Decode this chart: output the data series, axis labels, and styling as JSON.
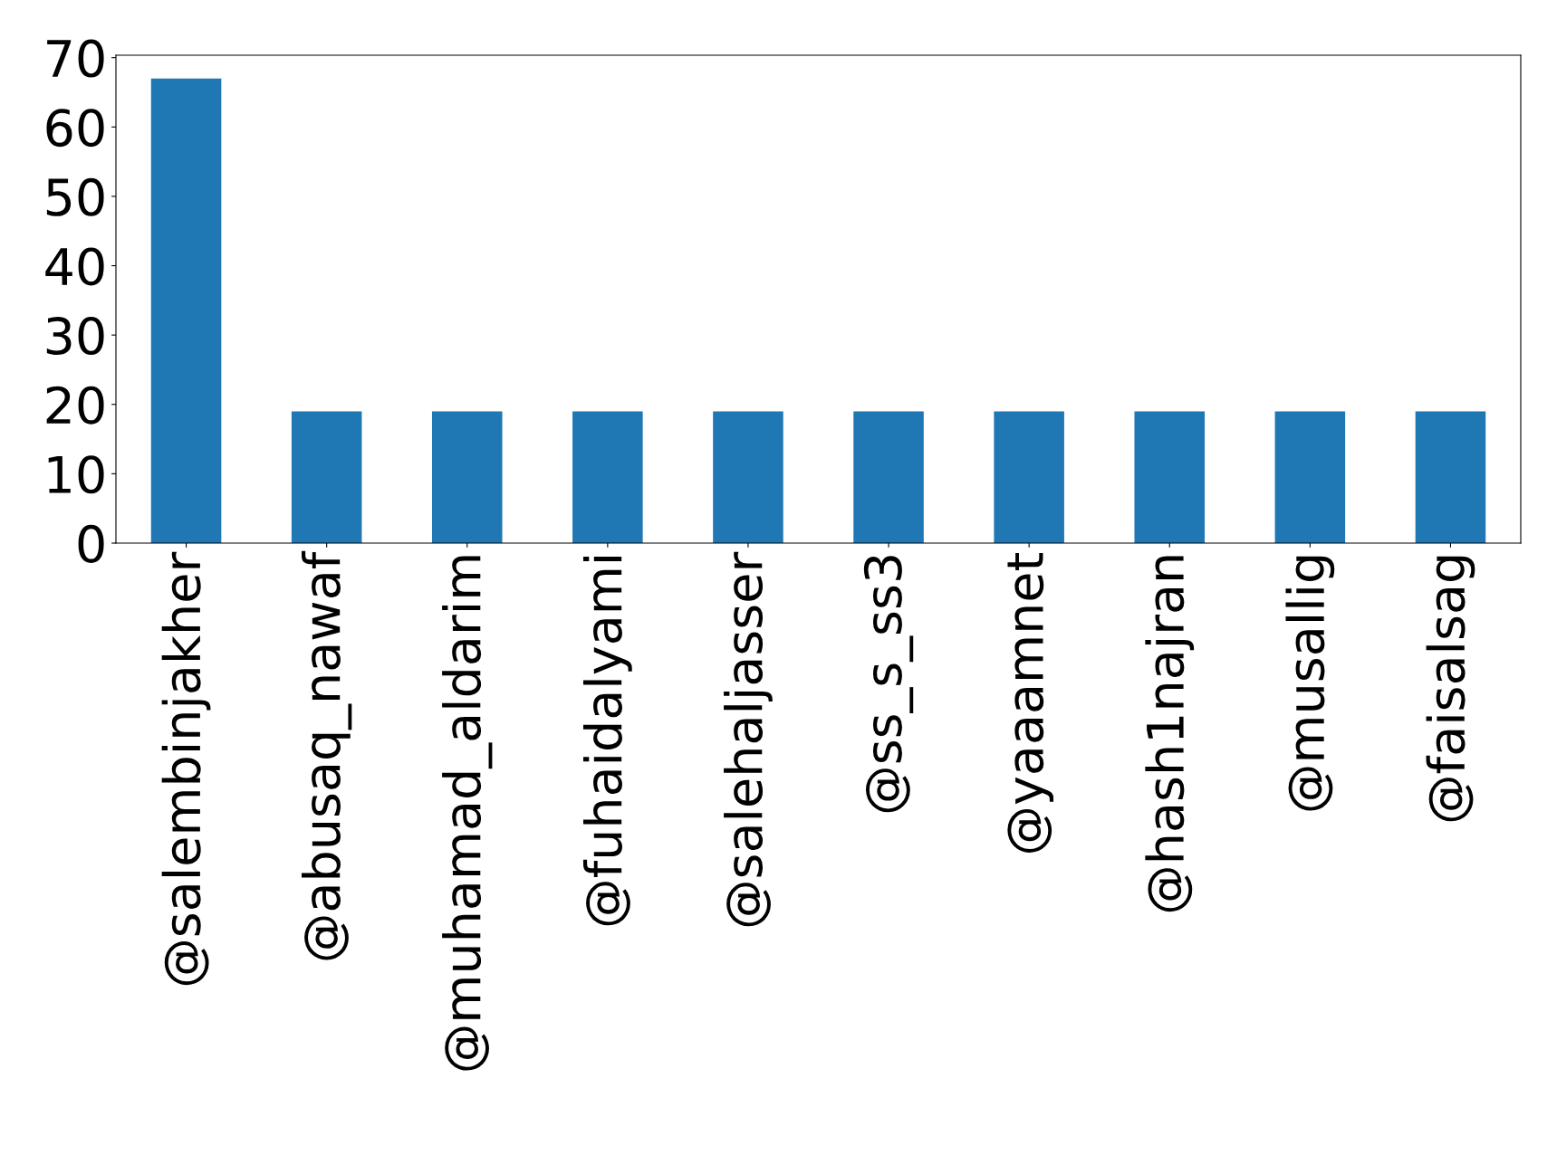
{
  "chart_data": {
    "type": "bar",
    "categories": [
      "@salembinjakher",
      "@abusaq_nawaf",
      "@muhamad_aldarim",
      "@fuhaidalyami",
      "@salehaljasser",
      "@ss_s_ss3",
      "@yaaamnet",
      "@hash1najran",
      "@musallig",
      "@faisalsag"
    ],
    "values": [
      67,
      19,
      19,
      19,
      19,
      19,
      19,
      19,
      19,
      19
    ],
    "color": "#1f77b4",
    "ylim": [
      0,
      70.35
    ],
    "yticks": [
      0,
      10,
      20,
      30,
      40,
      50,
      60,
      70
    ],
    "grid": false,
    "legend": false
  }
}
